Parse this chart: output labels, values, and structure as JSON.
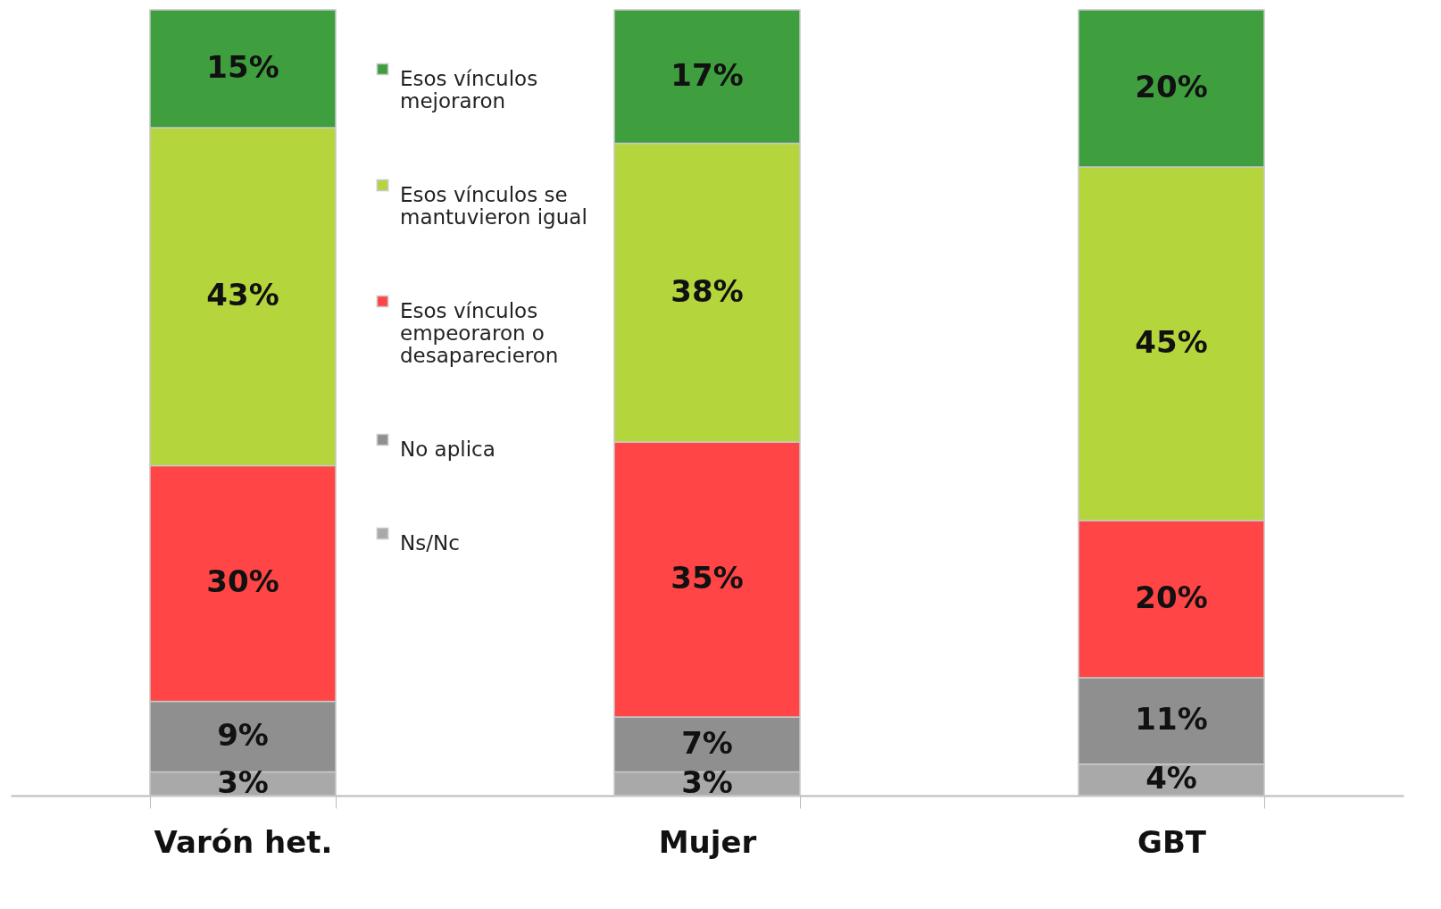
{
  "chart_data": {
    "type": "bar",
    "stacked": true,
    "legend": "top left",
    "categories": [
      "Varón het.",
      "Mujer",
      "GBT"
    ],
    "series": [
      {
        "name": "Ns/Nc",
        "color": "#a9a9a9",
        "values": [
          3,
          3,
          4
        ],
        "value_labels": [
          "3%",
          "3%",
          "4%"
        ]
      },
      {
        "name": "No aplica",
        "color": "#8f8f8f",
        "values": [
          9,
          7,
          11
        ],
        "value_labels": [
          "9%",
          "7%",
          "11%"
        ]
      },
      {
        "name": "Esos vínculos empeoraron o desaparecieron",
        "color": "#ff4545",
        "values": [
          30,
          35,
          20
        ],
        "value_labels": [
          "30%",
          "35%",
          "20%"
        ]
      },
      {
        "name": "Esos vínculos se mantuvieron igual",
        "color": "#b4d63c",
        "values": [
          43,
          38,
          45
        ],
        "value_labels": [
          "43%",
          "38%",
          "45%"
        ]
      },
      {
        "name": "Esos vínculos mejoraron",
        "color": "#3f9f3f",
        "values": [
          15,
          17,
          20
        ],
        "value_labels": [
          "15%",
          "17%",
          "20%"
        ]
      }
    ]
  }
}
